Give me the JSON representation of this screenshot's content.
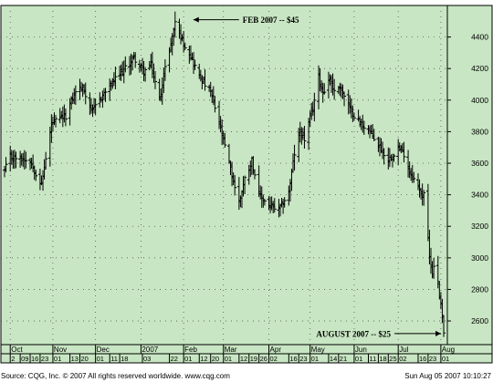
{
  "colors": {
    "background": "#c8e6c3",
    "bars": "#000000",
    "grid": "#555555",
    "frame": "#000000",
    "page": "#ffffff"
  },
  "footer": {
    "source": "Source: CQG, Inc. © 2007 All rights reserved worldwide. www.cqg.com",
    "timestamp": "Sun Aug 05 2007 10:10:27"
  },
  "chart_data": {
    "type": "ohlc",
    "title": "",
    "xlabel": "",
    "ylabel": "",
    "ylim": [
      2450,
      4600
    ],
    "y_ticks": [
      2600,
      2800,
      3000,
      3200,
      3400,
      3600,
      3800,
      4000,
      4200,
      4400
    ],
    "grid": true,
    "x_date_range": [
      "2006-09-28",
      "2007-08-03"
    ],
    "month_labels": [
      {
        "label": "Oct",
        "date": "2006-10-02"
      },
      {
        "label": "Nov",
        "date": "2006-11-01"
      },
      {
        "label": "Dec",
        "date": "2006-12-01"
      },
      {
        "label": "2007",
        "date": "2007-01-02"
      },
      {
        "label": "Feb",
        "date": "2007-02-01"
      },
      {
        "label": "Mar",
        "date": "2007-03-01"
      },
      {
        "label": "Apr",
        "date": "2007-04-02"
      },
      {
        "label": "May",
        "date": "2007-05-01"
      },
      {
        "label": "Jun",
        "date": "2007-06-01"
      },
      {
        "label": "Jul",
        "date": "2007-07-02"
      },
      {
        "label": "Aug",
        "date": "2007-08-01"
      }
    ],
    "day_labels": [
      {
        "label": "2",
        "date": "2006-10-02"
      },
      {
        "label": "09",
        "date": "2006-10-09"
      },
      {
        "label": "16",
        "date": "2006-10-16"
      },
      {
        "label": "23",
        "date": "2006-10-23"
      },
      {
        "label": "01",
        "date": "2006-11-01"
      },
      {
        "label": "13",
        "date": "2006-11-13"
      },
      {
        "label": "20",
        "date": "2006-11-20"
      },
      {
        "label": "01",
        "date": "2006-12-01"
      },
      {
        "label": "11",
        "date": "2006-12-11"
      },
      {
        "label": "18",
        "date": "2006-12-18"
      },
      {
        "label": "03",
        "date": "2007-01-03"
      },
      {
        "label": "22",
        "date": "2007-01-22"
      },
      {
        "label": "01",
        "date": "2007-02-01"
      },
      {
        "label": "12",
        "date": "2007-02-12"
      },
      {
        "label": "20",
        "date": "2007-02-20"
      },
      {
        "label": "01",
        "date": "2007-03-01"
      },
      {
        "label": "12",
        "date": "2007-03-12"
      },
      {
        "label": "19",
        "date": "2007-03-19"
      },
      {
        "label": "26",
        "date": "2007-03-26"
      },
      {
        "label": "02",
        "date": "2007-04-02"
      },
      {
        "label": "16",
        "date": "2007-04-16"
      },
      {
        "label": "23",
        "date": "2007-04-23"
      },
      {
        "label": "01",
        "date": "2007-05-01"
      },
      {
        "label": "14",
        "date": "2007-05-14"
      },
      {
        "label": "21",
        "date": "2007-05-21"
      },
      {
        "label": "01",
        "date": "2007-06-01"
      },
      {
        "label": "11",
        "date": "2007-06-11"
      },
      {
        "label": "18",
        "date": "2007-06-18"
      },
      {
        "label": "25",
        "date": "2007-06-25"
      },
      {
        "label": "02",
        "date": "2007-07-02"
      },
      {
        "label": "16",
        "date": "2007-07-16"
      },
      {
        "label": "23",
        "date": "2007-07-23"
      },
      {
        "label": "01",
        "date": "2007-08-01"
      }
    ],
    "annotations": [
      {
        "text": "FEB 2007 -- $45",
        "x": "2007-01-26",
        "y": 4510,
        "pointer": "left"
      },
      {
        "text": "AUGUST 2007 -- $25",
        "x": "2007-08-03",
        "y": 2520,
        "pointer": "right"
      }
    ],
    "anchors": [
      {
        "date": "2006-09-28",
        "close": 3550
      },
      {
        "date": "2006-10-02",
        "close": 3640
      },
      {
        "date": "2006-10-16",
        "close": 3620
      },
      {
        "date": "2006-10-24",
        "close": 3460
      },
      {
        "date": "2006-10-31",
        "close": 3850
      },
      {
        "date": "2006-11-10",
        "close": 3900
      },
      {
        "date": "2006-11-17",
        "close": 4060
      },
      {
        "date": "2006-11-22",
        "close": 4080
      },
      {
        "date": "2006-11-29",
        "close": 3930
      },
      {
        "date": "2006-12-06",
        "close": 4030
      },
      {
        "date": "2006-12-12",
        "close": 4100
      },
      {
        "date": "2006-12-22",
        "close": 4200
      },
      {
        "date": "2006-12-28",
        "close": 4270
      },
      {
        "date": "2007-01-04",
        "close": 4180
      },
      {
        "date": "2007-01-09",
        "close": 4220
      },
      {
        "date": "2007-01-15",
        "close": 4000
      },
      {
        "date": "2007-01-19",
        "close": 4200
      },
      {
        "date": "2007-01-24",
        "close": 4400
      },
      {
        "date": "2007-01-26",
        "close": 4500
      },
      {
        "date": "2007-01-31",
        "close": 4380
      },
      {
        "date": "2007-02-05",
        "close": 4300
      },
      {
        "date": "2007-02-12",
        "close": 4150
      },
      {
        "date": "2007-02-20",
        "close": 4050
      },
      {
        "date": "2007-02-26",
        "close": 3850
      },
      {
        "date": "2007-03-05",
        "close": 3600
      },
      {
        "date": "2007-03-09",
        "close": 3450
      },
      {
        "date": "2007-03-12",
        "close": 3350
      },
      {
        "date": "2007-03-16",
        "close": 3500
      },
      {
        "date": "2007-03-21",
        "close": 3620
      },
      {
        "date": "2007-03-26",
        "close": 3400
      },
      {
        "date": "2007-04-02",
        "close": 3330
      },
      {
        "date": "2007-04-09",
        "close": 3300
      },
      {
        "date": "2007-04-16",
        "close": 3420
      },
      {
        "date": "2007-04-20",
        "close": 3660
      },
      {
        "date": "2007-04-24",
        "close": 3800
      },
      {
        "date": "2007-04-27",
        "close": 3750
      },
      {
        "date": "2007-05-03",
        "close": 3950
      },
      {
        "date": "2007-05-07",
        "close": 4150
      },
      {
        "date": "2007-05-10",
        "close": 4050
      },
      {
        "date": "2007-05-15",
        "close": 4140
      },
      {
        "date": "2007-05-18",
        "close": 4050
      },
      {
        "date": "2007-05-22",
        "close": 4090
      },
      {
        "date": "2007-05-29",
        "close": 3940
      },
      {
        "date": "2007-06-05",
        "close": 3860
      },
      {
        "date": "2007-06-11",
        "close": 3810
      },
      {
        "date": "2007-06-18",
        "close": 3720
      },
      {
        "date": "2007-06-25",
        "close": 3620
      },
      {
        "date": "2007-07-02",
        "close": 3700
      },
      {
        "date": "2007-07-06",
        "close": 3660
      },
      {
        "date": "2007-07-10",
        "close": 3550
      },
      {
        "date": "2007-07-16",
        "close": 3450
      },
      {
        "date": "2007-07-19",
        "close": 3400
      },
      {
        "date": "2007-07-20",
        "close": 3420
      },
      {
        "date": "2007-07-23",
        "close": 3110
      },
      {
        "date": "2007-07-24",
        "close": 3000
      },
      {
        "date": "2007-07-25",
        "close": 2960
      },
      {
        "date": "2007-07-26",
        "close": 2900
      },
      {
        "date": "2007-07-27",
        "close": 2960
      },
      {
        "date": "2007-07-30",
        "close": 2840
      },
      {
        "date": "2007-07-31",
        "close": 2760
      },
      {
        "date": "2007-08-01",
        "close": 2720
      },
      {
        "date": "2007-08-02",
        "close": 2640
      },
      {
        "date": "2007-08-03",
        "close": 2520
      }
    ]
  }
}
